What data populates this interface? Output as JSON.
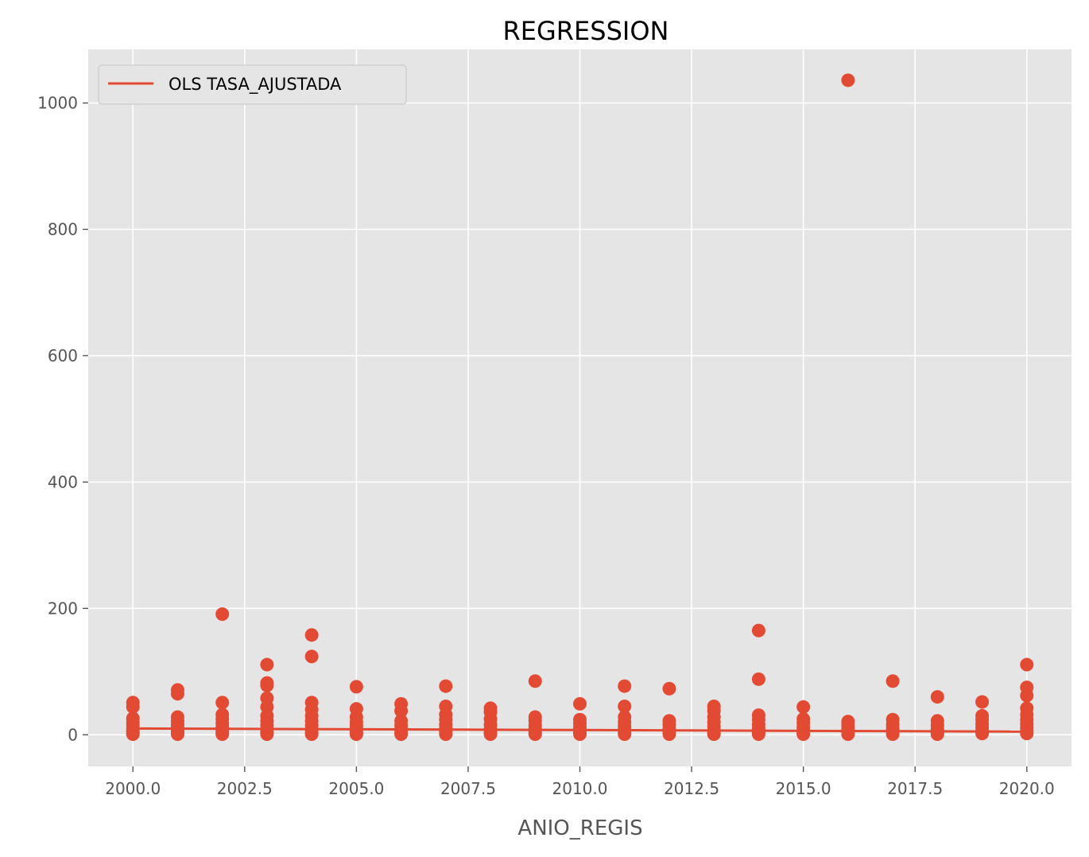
{
  "chart_data": {
    "type": "scatter",
    "title": "REGRESSION",
    "xlabel": "ANIO_REGIS",
    "ylabel": "",
    "xlim": [
      1999.0,
      2021.0
    ],
    "ylim": [
      -50,
      1085
    ],
    "grid": true,
    "legend_position": "top-left",
    "colors": {
      "series": "#e24a33",
      "plot_background": "#e5e5e5",
      "grid": "#ffffff",
      "tick_text": "#555555"
    },
    "xticks": [
      2000.0,
      2002.5,
      2005.0,
      2007.5,
      2010.0,
      2012.5,
      2015.0,
      2017.5,
      2020.0
    ],
    "xtick_labels": [
      "2000.0",
      "2002.5",
      "2005.0",
      "2007.5",
      "2010.0",
      "2012.5",
      "2015.0",
      "2017.5",
      "2020.0"
    ],
    "yticks": [
      0,
      200,
      400,
      600,
      800,
      1000
    ],
    "ytick_labels": [
      "0",
      "200",
      "400",
      "600",
      "800",
      "1000"
    ],
    "series": [
      {
        "name": "OLS TASA_AJUSTADA",
        "kind": "line",
        "x": [
          2000,
          2020
        ],
        "y": [
          10,
          5
        ]
      },
      {
        "kind": "scatter",
        "points": [
          [
            2000,
            51
          ],
          [
            2000,
            44
          ],
          [
            2000,
            26
          ],
          [
            2000,
            20
          ],
          [
            2000,
            15
          ],
          [
            2000,
            10
          ],
          [
            2000,
            6
          ],
          [
            2000,
            3
          ],
          [
            2000,
            1
          ],
          [
            2001,
            71
          ],
          [
            2001,
            65
          ],
          [
            2001,
            28
          ],
          [
            2001,
            22
          ],
          [
            2001,
            16
          ],
          [
            2001,
            11
          ],
          [
            2001,
            7
          ],
          [
            2001,
            3
          ],
          [
            2001,
            1
          ],
          [
            2002,
            191
          ],
          [
            2002,
            51
          ],
          [
            2002,
            32
          ],
          [
            2002,
            25
          ],
          [
            2002,
            18
          ],
          [
            2002,
            12
          ],
          [
            2002,
            7
          ],
          [
            2002,
            3
          ],
          [
            2002,
            1
          ],
          [
            2003,
            111
          ],
          [
            2003,
            82
          ],
          [
            2003,
            78
          ],
          [
            2003,
            58
          ],
          [
            2003,
            44
          ],
          [
            2003,
            30
          ],
          [
            2003,
            22
          ],
          [
            2003,
            15
          ],
          [
            2003,
            9
          ],
          [
            2003,
            4
          ],
          [
            2003,
            1
          ],
          [
            2004,
            158
          ],
          [
            2004,
            124
          ],
          [
            2004,
            51
          ],
          [
            2004,
            40
          ],
          [
            2004,
            30
          ],
          [
            2004,
            22
          ],
          [
            2004,
            15
          ],
          [
            2004,
            9
          ],
          [
            2004,
            4
          ],
          [
            2004,
            1
          ],
          [
            2005,
            76
          ],
          [
            2005,
            41
          ],
          [
            2005,
            28
          ],
          [
            2005,
            20
          ],
          [
            2005,
            14
          ],
          [
            2005,
            9
          ],
          [
            2005,
            4
          ],
          [
            2005,
            1
          ],
          [
            2006,
            49
          ],
          [
            2006,
            38
          ],
          [
            2006,
            22
          ],
          [
            2006,
            15
          ],
          [
            2006,
            9
          ],
          [
            2006,
            4
          ],
          [
            2006,
            1
          ],
          [
            2007,
            77
          ],
          [
            2007,
            45
          ],
          [
            2007,
            32
          ],
          [
            2007,
            24
          ],
          [
            2007,
            16
          ],
          [
            2007,
            10
          ],
          [
            2007,
            5
          ],
          [
            2007,
            1
          ],
          [
            2008,
            42
          ],
          [
            2008,
            36
          ],
          [
            2008,
            25
          ],
          [
            2008,
            16
          ],
          [
            2008,
            9
          ],
          [
            2008,
            4
          ],
          [
            2008,
            1
          ],
          [
            2009,
            85
          ],
          [
            2009,
            28
          ],
          [
            2009,
            22
          ],
          [
            2009,
            15
          ],
          [
            2009,
            9
          ],
          [
            2009,
            4
          ],
          [
            2009,
            1
          ],
          [
            2010,
            49
          ],
          [
            2010,
            24
          ],
          [
            2010,
            18
          ],
          [
            2010,
            12
          ],
          [
            2010,
            7
          ],
          [
            2010,
            3
          ],
          [
            2010,
            1
          ],
          [
            2011,
            77
          ],
          [
            2011,
            45
          ],
          [
            2011,
            28
          ],
          [
            2011,
            20
          ],
          [
            2011,
            13
          ],
          [
            2011,
            8
          ],
          [
            2011,
            4
          ],
          [
            2011,
            1
          ],
          [
            2012,
            73
          ],
          [
            2012,
            22
          ],
          [
            2012,
            16
          ],
          [
            2012,
            10
          ],
          [
            2012,
            5
          ],
          [
            2012,
            1
          ],
          [
            2013,
            45
          ],
          [
            2013,
            38
          ],
          [
            2013,
            28
          ],
          [
            2013,
            20
          ],
          [
            2013,
            13
          ],
          [
            2013,
            7
          ],
          [
            2013,
            3
          ],
          [
            2013,
            1
          ],
          [
            2014,
            165
          ],
          [
            2014,
            88
          ],
          [
            2014,
            31
          ],
          [
            2014,
            24
          ],
          [
            2014,
            16
          ],
          [
            2014,
            10
          ],
          [
            2014,
            5
          ],
          [
            2014,
            1
          ],
          [
            2015,
            44
          ],
          [
            2015,
            25
          ],
          [
            2015,
            19
          ],
          [
            2015,
            12
          ],
          [
            2015,
            7
          ],
          [
            2015,
            3
          ],
          [
            2015,
            1
          ],
          [
            2016,
            1036
          ],
          [
            2016,
            21
          ],
          [
            2016,
            15
          ],
          [
            2016,
            10
          ],
          [
            2016,
            5
          ],
          [
            2016,
            1
          ],
          [
            2017,
            85
          ],
          [
            2017,
            24
          ],
          [
            2017,
            16
          ],
          [
            2017,
            10
          ],
          [
            2017,
            5
          ],
          [
            2017,
            1
          ],
          [
            2018,
            60
          ],
          [
            2018,
            22
          ],
          [
            2018,
            15
          ],
          [
            2018,
            9
          ],
          [
            2018,
            4
          ],
          [
            2018,
            1
          ],
          [
            2019,
            52
          ],
          [
            2019,
            30
          ],
          [
            2019,
            24
          ],
          [
            2019,
            17
          ],
          [
            2019,
            11
          ],
          [
            2019,
            6
          ],
          [
            2019,
            2
          ],
          [
            2020,
            111
          ],
          [
            2020,
            75
          ],
          [
            2020,
            62
          ],
          [
            2020,
            42
          ],
          [
            2020,
            32
          ],
          [
            2020,
            24
          ],
          [
            2020,
            17
          ],
          [
            2020,
            11
          ],
          [
            2020,
            6
          ],
          [
            2020,
            2
          ]
        ]
      }
    ]
  }
}
